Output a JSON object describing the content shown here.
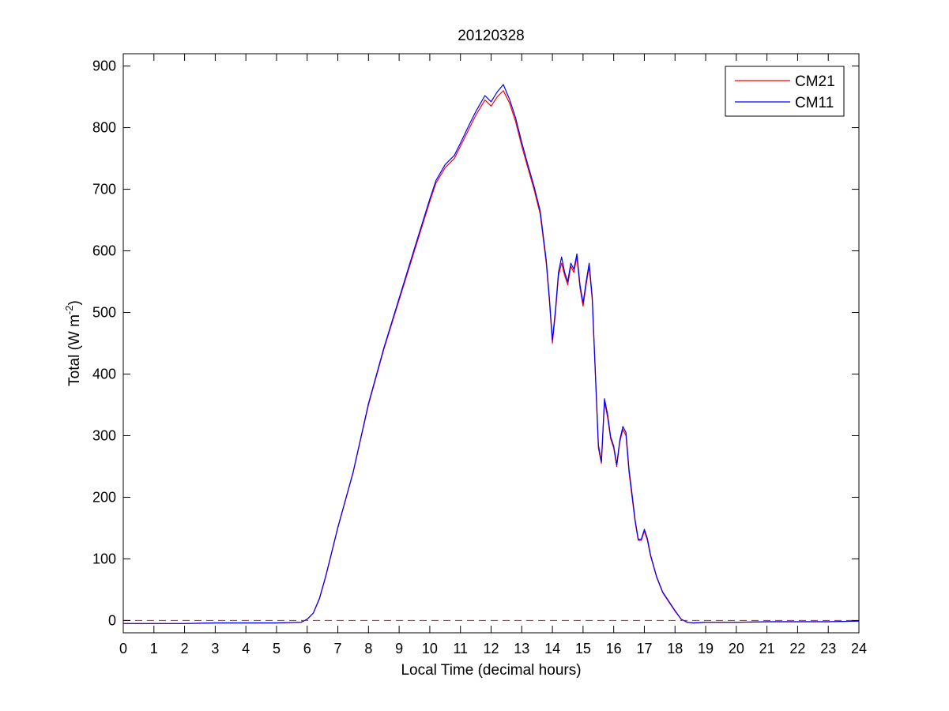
{
  "chart_data": {
    "type": "line",
    "title": "20120328",
    "xlabel": "Local Time (decimal hours)",
    "ylabel": {
      "prefix": "Total (W m",
      "sup": "-2",
      "suffix": ")"
    },
    "xlim": [
      0,
      24
    ],
    "ylim": [
      -20,
      920
    ],
    "xticks": [
      0,
      1,
      2,
      3,
      4,
      5,
      6,
      7,
      8,
      9,
      10,
      11,
      12,
      13,
      14,
      15,
      16,
      17,
      18,
      19,
      20,
      21,
      22,
      23,
      24
    ],
    "yticks": [
      0,
      100,
      200,
      300,
      400,
      500,
      600,
      700,
      800,
      900
    ],
    "grid": false,
    "legend": {
      "position": "top-right"
    },
    "reference_line": {
      "y": 0,
      "style": "dashed",
      "color": "#ff0000"
    },
    "series": [
      {
        "name": "CM21",
        "color": "#ff0000",
        "x": [
          0,
          1,
          2,
          3,
          4,
          5,
          5.8,
          6.0,
          6.2,
          6.4,
          6.6,
          6.8,
          7.0,
          7.5,
          8.0,
          8.5,
          9.0,
          9.5,
          10.0,
          10.2,
          10.5,
          10.8,
          11.0,
          11.3,
          11.5,
          11.8,
          12.0,
          12.2,
          12.4,
          12.6,
          12.8,
          13.0,
          13.2,
          13.4,
          13.6,
          13.8,
          13.9,
          14.0,
          14.1,
          14.2,
          14.3,
          14.4,
          14.5,
          14.6,
          14.7,
          14.8,
          14.9,
          15.0,
          15.1,
          15.2,
          15.3,
          15.4,
          15.5,
          15.6,
          15.7,
          15.8,
          15.9,
          16.0,
          16.1,
          16.2,
          16.3,
          16.4,
          16.5,
          16.6,
          16.7,
          16.8,
          16.9,
          17.0,
          17.1,
          17.2,
          17.4,
          17.6,
          17.8,
          18.0,
          18.2,
          18.4,
          18.6,
          19,
          20,
          21,
          22,
          23,
          24
        ],
        "y": [
          -5,
          -5,
          -5,
          -4,
          -4,
          -4,
          -3,
          2,
          12,
          35,
          70,
          110,
          150,
          240,
          350,
          440,
          520,
          600,
          680,
          710,
          735,
          750,
          770,
          800,
          820,
          845,
          835,
          850,
          860,
          840,
          810,
          770,
          735,
          700,
          660,
          580,
          520,
          450,
          500,
          560,
          580,
          560,
          545,
          575,
          565,
          590,
          540,
          510,
          545,
          575,
          520,
          400,
          280,
          255,
          355,
          330,
          295,
          280,
          250,
          290,
          310,
          300,
          240,
          200,
          160,
          130,
          130,
          145,
          130,
          105,
          70,
          45,
          30,
          15,
          2,
          -3,
          -4,
          -3,
          -3,
          -2,
          -2,
          -2,
          -1
        ]
      },
      {
        "name": "CM11",
        "color": "#0000ff",
        "x": [
          0,
          1,
          2,
          3,
          4,
          5,
          5.8,
          6.0,
          6.2,
          6.4,
          6.6,
          6.8,
          7.0,
          7.5,
          8.0,
          8.5,
          9.0,
          9.5,
          10.0,
          10.2,
          10.5,
          10.8,
          11.0,
          11.3,
          11.5,
          11.8,
          12.0,
          12.2,
          12.4,
          12.6,
          12.8,
          13.0,
          13.2,
          13.4,
          13.6,
          13.8,
          13.9,
          14.0,
          14.1,
          14.2,
          14.3,
          14.4,
          14.5,
          14.6,
          14.7,
          14.8,
          14.9,
          15.0,
          15.1,
          15.2,
          15.3,
          15.4,
          15.5,
          15.6,
          15.7,
          15.8,
          15.9,
          16.0,
          16.1,
          16.2,
          16.3,
          16.4,
          16.5,
          16.6,
          16.7,
          16.8,
          16.9,
          17.0,
          17.1,
          17.2,
          17.4,
          17.6,
          17.8,
          18.0,
          18.2,
          18.4,
          18.6,
          19,
          20,
          21,
          22,
          23,
          24
        ],
        "y": [
          -5,
          -5,
          -5,
          -4,
          -4,
          -4,
          -3,
          2,
          12,
          36,
          71,
          111,
          151,
          241,
          352,
          442,
          523,
          604,
          684,
          714,
          740,
          755,
          775,
          806,
          826,
          852,
          842,
          858,
          870,
          846,
          816,
          776,
          740,
          705,
          665,
          585,
          525,
          455,
          505,
          565,
          590,
          565,
          550,
          580,
          570,
          595,
          545,
          515,
          550,
          580,
          525,
          405,
          285,
          258,
          360,
          335,
          298,
          283,
          253,
          293,
          315,
          305,
          245,
          205,
          163,
          132,
          132,
          148,
          133,
          107,
          71,
          46,
          31,
          16,
          2,
          -3,
          -4,
          -3,
          -3,
          -2,
          -2,
          -2,
          -1
        ]
      }
    ]
  }
}
